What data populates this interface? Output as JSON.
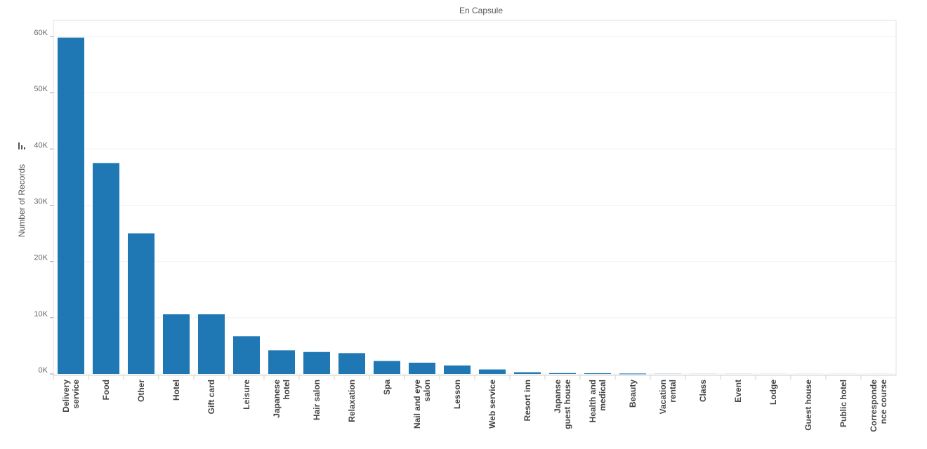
{
  "chart_data": {
    "type": "bar",
    "title": "En Capsule",
    "xlabel": "",
    "ylabel": "Number of Records",
    "ylim": [
      0,
      60000
    ],
    "yticks": [
      "0K",
      "10K",
      "20K",
      "30K",
      "40K",
      "50K",
      "60K"
    ],
    "color": "#1f77b4",
    "categories": [
      [
        "Delivery",
        "service"
      ],
      [
        "Food"
      ],
      [
        "Other"
      ],
      [
        "Hotel"
      ],
      [
        "Gift card"
      ],
      [
        "Leisure"
      ],
      [
        "Japanese",
        "hotel"
      ],
      [
        "Hair salon"
      ],
      [
        "Relaxation"
      ],
      [
        "Spa"
      ],
      [
        "Nail and eye",
        "salon"
      ],
      [
        "Lesson"
      ],
      [
        "Web service"
      ],
      [
        "Resort inn"
      ],
      [
        "Japanse",
        "guest house"
      ],
      [
        "Health and",
        "medical"
      ],
      [
        "Beauty"
      ],
      [
        "Vacation",
        "rental"
      ],
      [
        "Class"
      ],
      [
        "Event"
      ],
      [
        "Lodge"
      ],
      [
        "Guest house"
      ],
      [
        "Public hotel"
      ],
      [
        "Corresponde",
        "nce course"
      ]
    ],
    "values": [
      59800,
      37500,
      25000,
      10600,
      10600,
      6700,
      4200,
      3900,
      3700,
      2300,
      2000,
      1500,
      800,
      300,
      150,
      120,
      60,
      20,
      10,
      10,
      5,
      5,
      5,
      5
    ]
  }
}
